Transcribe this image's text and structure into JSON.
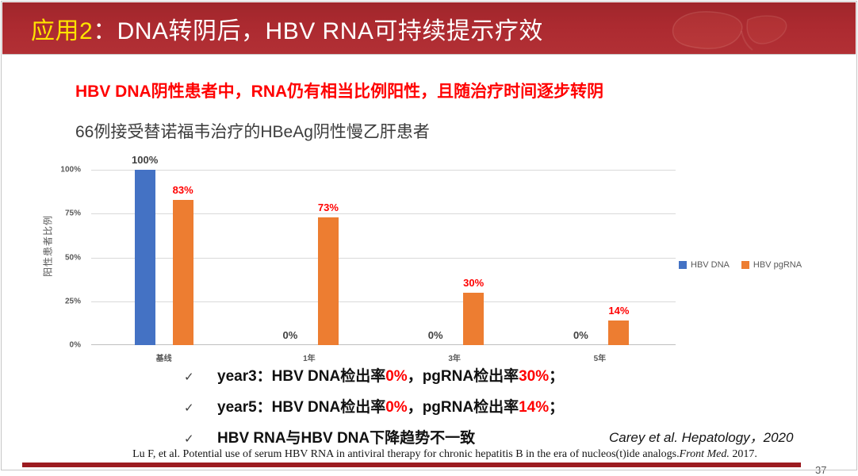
{
  "slide": {
    "header": {
      "badge": "应用2",
      "title_rest": "：DNA转阴后，HBV RNA可持续提示疗效"
    },
    "subtitle": "HBV DNA阴性患者中，RNA仍有相当比例阳性，且随治疗时间逐步转阴",
    "chart_heading": "66例接受替诺福韦治疗的HBeAg阴性慢乙肝患者",
    "page_number": "37"
  },
  "chart_data": {
    "type": "bar",
    "categories": [
      "基线",
      "1年",
      "3年",
      "5年"
    ],
    "series": [
      {
        "name": "HBV DNA",
        "color": "#4472C4",
        "values": [
          100,
          0,
          0,
          0
        ],
        "labels": [
          "100%",
          "0%",
          "0%",
          "0%"
        ],
        "label_color": "#404040"
      },
      {
        "name": "HBV pgRNA",
        "color": "#ED7D31",
        "values": [
          83,
          73,
          30,
          14
        ],
        "labels": [
          "83%",
          "73%",
          "30%",
          "14%"
        ],
        "label_color": "#FF0000"
      }
    ],
    "title": "66例接受替诺福韦治疗的HBeAg阴性慢乙肝患者",
    "xlabel": "",
    "ylabel": "阳性患者比例",
    "yticks": [
      "100%",
      "75%",
      "50%",
      "25%",
      "0%"
    ],
    "ylim": [
      0,
      100
    ],
    "grid": true,
    "legend_position": "right"
  },
  "bullets": {
    "marker": "✓",
    "items": [
      {
        "segments": [
          {
            "t": "year3：HBV DNA检出率"
          },
          {
            "t": "0%",
            "red": true
          },
          {
            "t": "，pgRNA检出率"
          },
          {
            "t": "30%",
            "red": true
          },
          {
            "t": "；"
          }
        ]
      },
      {
        "segments": [
          {
            "t": "year5：HBV DNA检出率"
          },
          {
            "t": "0%",
            "red": true
          },
          {
            "t": "，pgRNA检出率"
          },
          {
            "t": "14%",
            "red": true
          },
          {
            "t": "；"
          }
        ]
      },
      {
        "segments": [
          {
            "t": "HBV RNA与HBV DNA下降趋势不一致"
          }
        ]
      }
    ]
  },
  "citation": "Carey et al.  Hepatology，2020",
  "footer": {
    "segments": [
      {
        "t": "Lu F, et al. Potential use of serum HBV RNA in antiviral therapy for chronic hepatitis B in the era of nucleos(t)ide analogs."
      },
      {
        "t": "Front Med.",
        "italic": true
      },
      {
        "t": " 2017."
      }
    ]
  },
  "colors": {
    "header_red": "#AC2A30",
    "accent_bar_red": "#9C1B20",
    "badge_yellow": "#FFE400",
    "series_blue": "#4472C4",
    "series_orange": "#ED7D31",
    "label_red": "#FF0000",
    "gridline_gray": "#D9D9D9",
    "axis_gray": "#BFBFBF",
    "tick_text_gray": "#595959"
  }
}
